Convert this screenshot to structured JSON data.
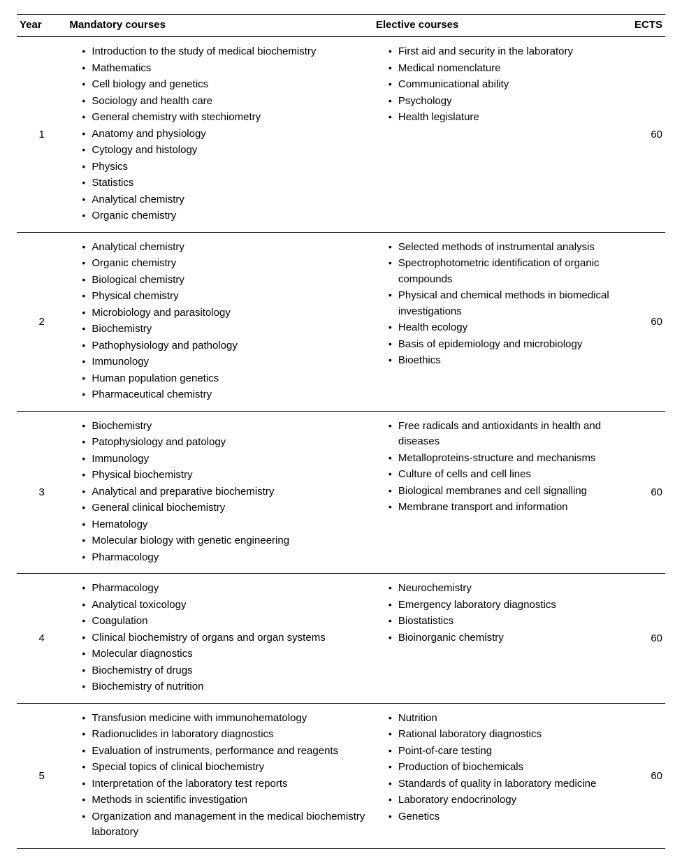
{
  "headers": {
    "year": "Year",
    "mandatory": "Mandatory courses",
    "elective": "Elective courses",
    "ects": "ECTS"
  },
  "rows": [
    {
      "year": "1",
      "mandatory": [
        "Introduction to the study of medical biochemistry",
        "Mathematics",
        "Cell biology and genetics",
        "Sociology and health care",
        "General chemistry with stechiometry",
        "Anatomy and physiology",
        "Cytology and histology",
        "Physics",
        "Statistics",
        "Analytical chemistry",
        "Organic chemistry"
      ],
      "elective": [
        "First aid and security in the laboratory",
        "Medical nomenclature",
        "Communicational ability",
        "Psychology",
        "Health legislature"
      ],
      "ects": "60"
    },
    {
      "year": "2",
      "mandatory": [
        "Analytical chemistry",
        "Organic chemistry",
        "Biological chemistry",
        "Physical chemistry",
        "Microbiology and parasitology",
        "Biochemistry",
        "Pathophysiology and pathology",
        "Immunology",
        "Human population genetics",
        "Pharmaceutical chemistry"
      ],
      "elective": [
        "Selected methods of instrumental analysis",
        "Spectrophotometric identification of organic compounds",
        "Physical and chemical methods in biomedical investigations",
        "Health ecology",
        "Basis of epidemiology and microbiology",
        "Bioethics"
      ],
      "ects": "60"
    },
    {
      "year": "3",
      "mandatory": [
        "Biochemistry",
        "Patophysiology and patology",
        "Immunology",
        "Physical biochemistry",
        "Analytical and preparative biochemistry",
        "General clinical biochemistry",
        "Hematology",
        "Molecular biology with genetic engineering",
        "Pharmacology"
      ],
      "elective": [
        "Free radicals and antioxidants in health and diseases",
        "Metalloproteins-structure and mechanisms",
        "Culture of cells and cell lines",
        "Biological membranes and cell signalling",
        "Membrane transport and information"
      ],
      "ects": "60"
    },
    {
      "year": "4",
      "mandatory": [
        "Pharmacology",
        "Analytical toxicology",
        "Coagulation",
        "Clinical biochemistry of organs and organ systems",
        "Molecular diagnostics",
        "Biochemistry of drugs",
        "Biochemistry of nutrition"
      ],
      "elective": [
        "Neurochemistry",
        "Emergency laboratory diagnostics",
        "Biostatistics",
        "Bioinorganic chemistry"
      ],
      "ects": "60"
    },
    {
      "year": "5",
      "mandatory": [
        "Transfusion medicine with immunohematology",
        "Radionuclides in laboratory diagnostics",
        "Evaluation of instruments, performance and reagents",
        "Special topics of clinical biochemistry",
        "Interpretation of the laboratory test reports",
        "Methods in scientific investigation",
        "Organization and management in the medical biochemistry laboratory"
      ],
      "elective": [
        "Nutrition",
        "Rational laboratory diagnostics",
        "Point-of-care testing",
        "Production of biochemicals",
        "Standards of quality in laboratory medicine",
        "Laboratory endocrinology",
        "Genetics"
      ],
      "ects": "60"
    }
  ]
}
